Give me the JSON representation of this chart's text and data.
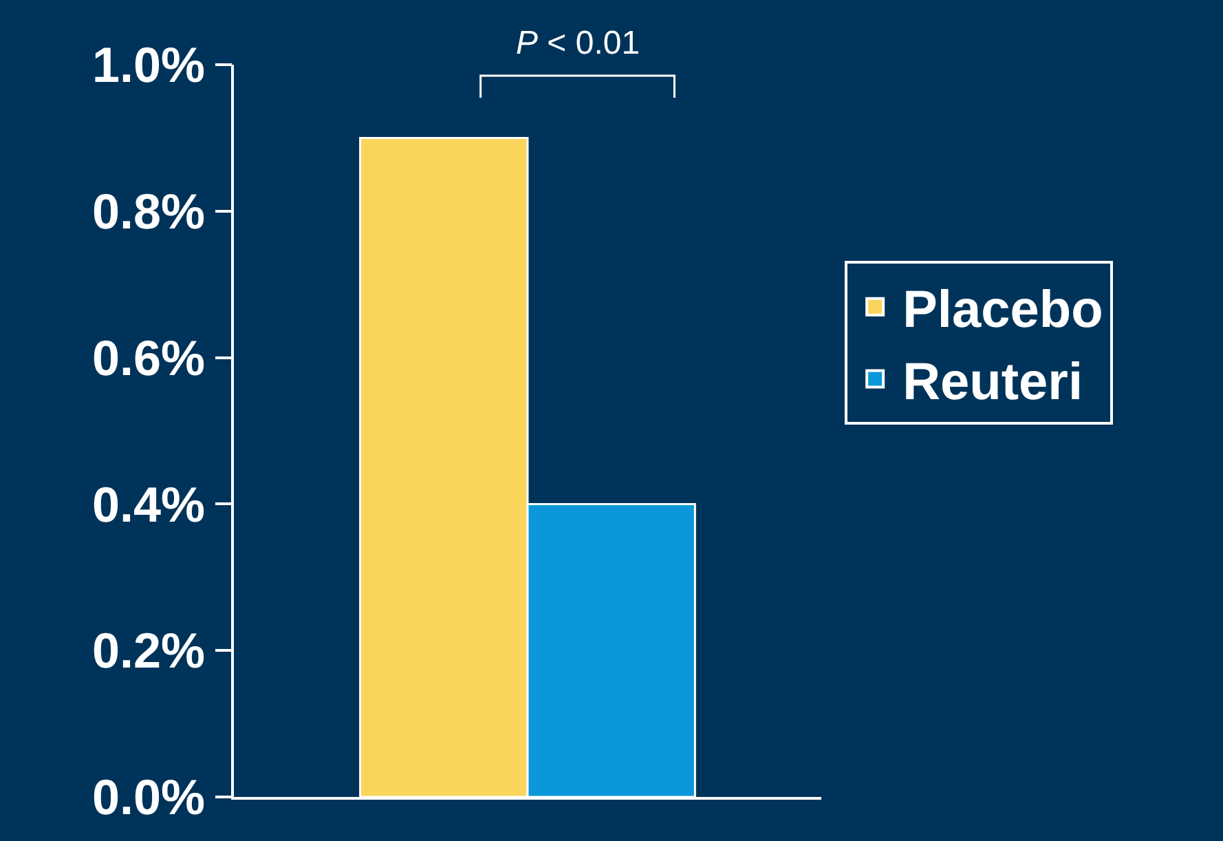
{
  "chart_data": {
    "type": "bar",
    "categories": [
      null
    ],
    "series": [
      {
        "name": "Placebo",
        "color": "#f9d55c",
        "values": [
          0.009
        ]
      },
      {
        "name": "Reuteri",
        "color": "#0a98da",
        "values": [
          0.004
        ]
      }
    ],
    "ylim": [
      0,
      0.01
    ],
    "yticks": [
      {
        "value": 0,
        "label": "0.0%"
      },
      {
        "value": 0.002,
        "label": "0.2%"
      },
      {
        "value": 0.004,
        "label": "0.4%"
      },
      {
        "value": 0.006,
        "label": "0.6%"
      },
      {
        "value": 0.008,
        "label": "0.8%"
      },
      {
        "value": 0.01,
        "label": "1.0%"
      }
    ],
    "annotations": [
      "P < 0.01"
    ],
    "grid": false,
    "legend": "right"
  }
}
